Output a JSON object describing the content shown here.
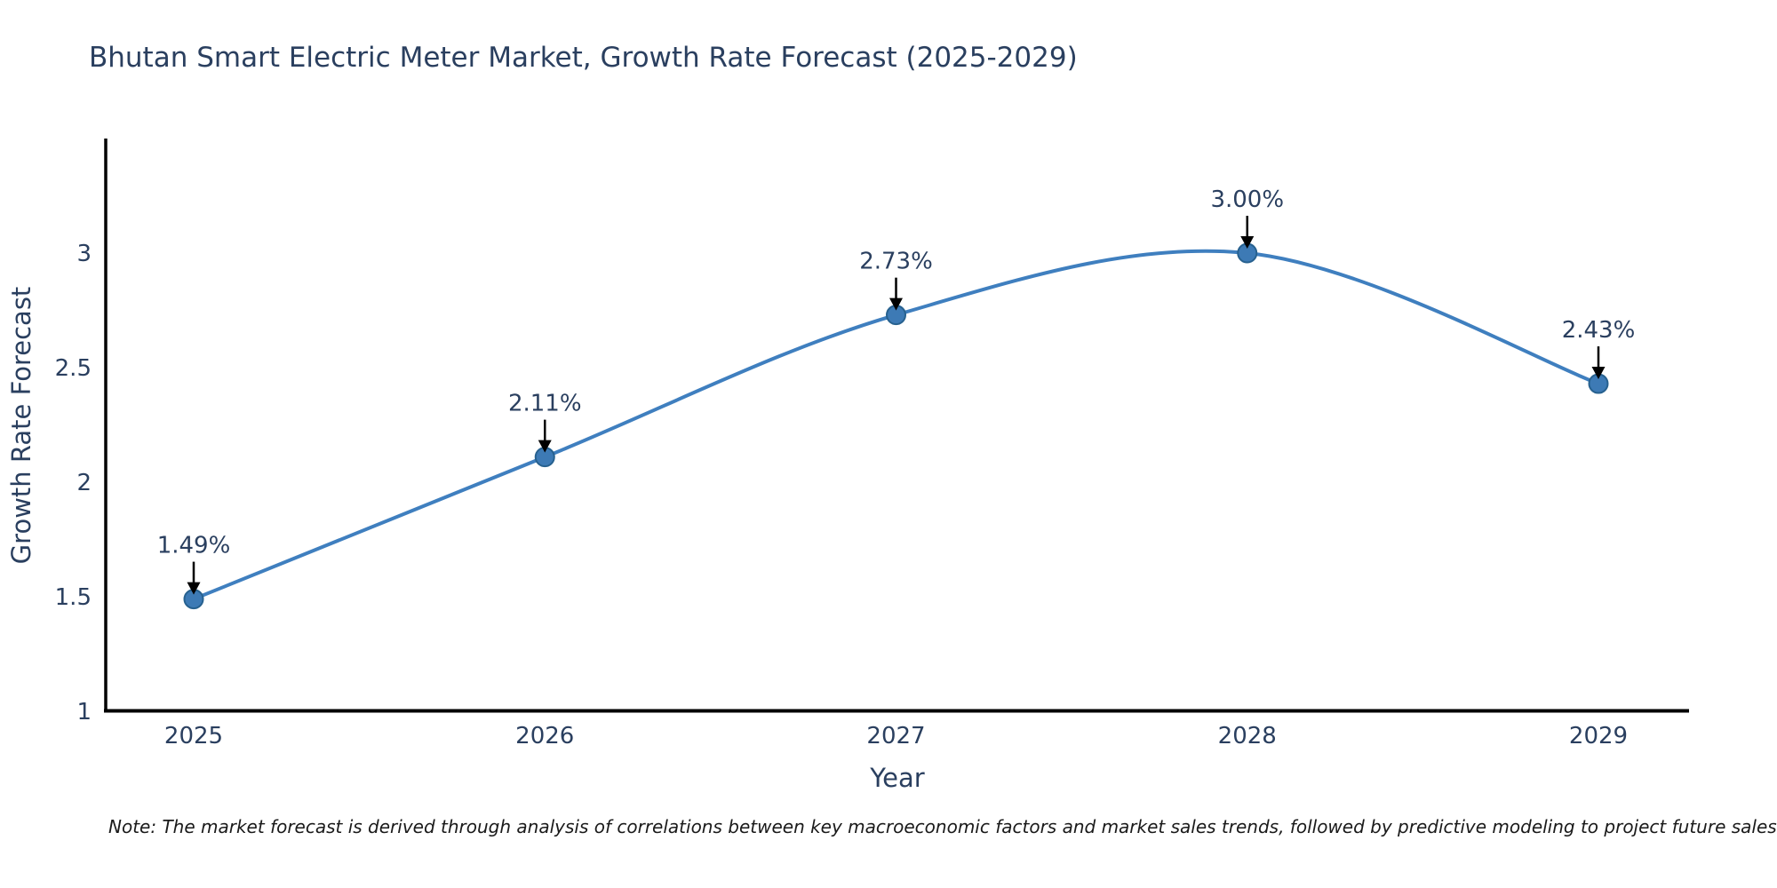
{
  "chart_data": {
    "type": "line",
    "title": "Bhutan Smart Electric Meter Market, Growth Rate Forecast (2025-2029)",
    "xlabel": "Year",
    "ylabel": "Growth Rate Forecast",
    "categories": [
      "2025",
      "2026",
      "2027",
      "2028",
      "2029"
    ],
    "series": [
      {
        "name": "Growth Rate Forecast",
        "values": [
          1.49,
          2.11,
          2.73,
          3.0,
          2.43
        ],
        "point_labels": [
          "1.49%",
          "2.11%",
          "2.73%",
          "3.00%",
          "2.43%"
        ]
      }
    ],
    "ytick_labels": [
      "1",
      "1.5",
      "2",
      "2.5",
      "3"
    ],
    "ytick_values": [
      1,
      1.5,
      2,
      2.5,
      3
    ],
    "ylim": [
      1,
      3.5
    ],
    "line_shape": "spline",
    "grid": false,
    "legend_position": "none",
    "line_color": "#3f7fbf",
    "marker_fill_color": "#3d7ab5",
    "marker_edge_color": "#27618f",
    "axis_line_color": "#000000",
    "text_color": "#2a3f5f",
    "annotation_arrow_color": "#000000"
  },
  "note": {
    "text": "Note: The market forecast is derived through analysis of correlations between key macroeconomic factors and market sales trends, followed by predictive modeling to project future sales"
  }
}
